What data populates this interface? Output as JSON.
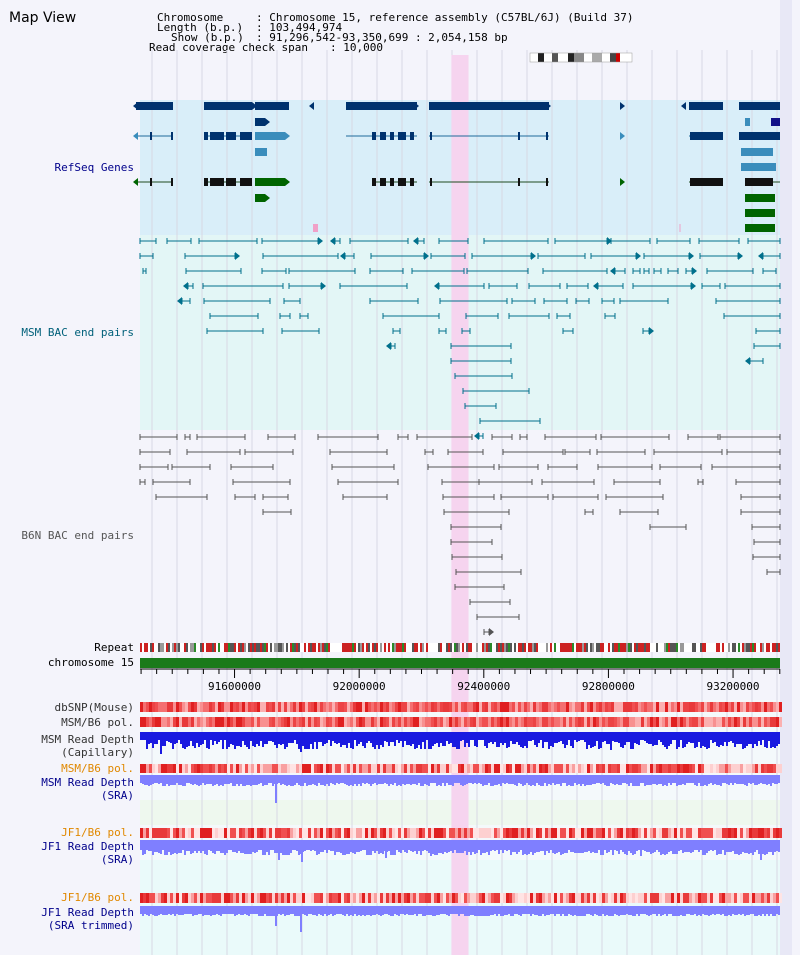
{
  "header": {
    "title": "Map View",
    "chromosome_label": "Chromosome",
    "chromosome_value": ": Chromosome 15, reference assembly (C57BL/6J) (Build 37)",
    "length_label": "Length (b.p.)",
    "length_value": ": 103,494,974",
    "show_label": "Show (b.p.)",
    "show_value": ": 91,296,542-93,350,699 : 2,054,158 bp",
    "coverage_label": "Read coverage check span",
    "coverage_value": ": 10,000"
  },
  "tracks": {
    "refseq": "RefSeq Genes",
    "msm_bac": "MSM BAC end pairs",
    "b6n_bac": "B6N BAC end pairs",
    "repeat": "Repeat",
    "chromosome": "chromosome 15",
    "dbsnp": "dbSNP(Mouse)",
    "msm_b6_pol_1": "MSM/B6 pol.",
    "msm_read_depth_cap_1": "MSM Read Depth",
    "msm_read_depth_cap_2": "(Capillary)",
    "msm_b6_pol_2": "MSM/B6 pol.",
    "msm_read_depth_sra_1": "MSM Read Depth",
    "msm_read_depth_sra_2": "(SRA)",
    "jf1_b6_pol_1": "JF1/B6 pol.",
    "jf1_read_depth_sra_1": "JF1 Read Depth",
    "jf1_read_depth_sra_2": "(SRA)",
    "jf1_b6_pol_2": "JF1/B6 pol.",
    "jf1_read_depth_trim_1": "JF1 Read Depth",
    "jf1_read_depth_trim_2": "(SRA trimmed)"
  },
  "axis": {
    "ticks": [
      "91600000",
      "92000000",
      "92400000",
      "92800000",
      "93200000"
    ],
    "tick_values": [
      91600000,
      92000000,
      92400000,
      92800000,
      93200000
    ],
    "range": [
      91296542,
      93350699
    ]
  },
  "highlight": {
    "start": 92296000,
    "end": 92351000
  },
  "colors": {
    "refseq_bg": "#d9eef9",
    "msm_bg": "#e3f6f6",
    "b6n_bg": "#f4f4fb",
    "refseq_dark": "#00326e",
    "refseq_mid": "#3a8dbc",
    "refseq_green": "#006400",
    "msm_line": "#00708c",
    "b6n_line": "#555555",
    "highlight": "#f6d4ef",
    "pol_red": "#e83a3a",
    "depth_blue": "#1a1ae0",
    "depth_light": "#7f7fff"
  },
  "labels_colors": {
    "refseq": "#00008b",
    "msm": "#00607a",
    "b6n": "#555555",
    "orange": "#e08800",
    "navy": "#00008b"
  }
}
